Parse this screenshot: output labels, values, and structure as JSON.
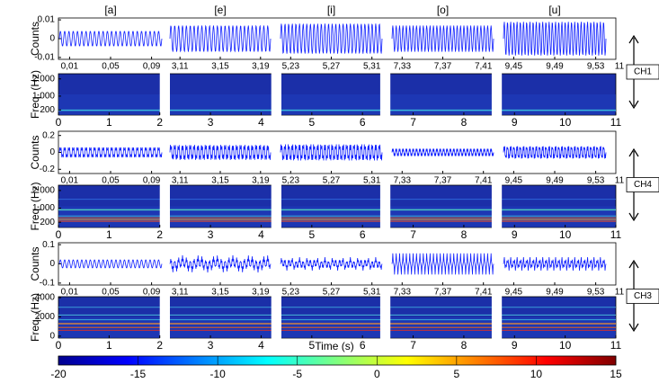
{
  "vowels": [
    "[a]",
    "[e]",
    "[i]",
    "[o]",
    "[u]"
  ],
  "waveform_x": [
    {
      "xlim": [
        0,
        0.1
      ],
      "xticks": [
        {
          "value": 0.01,
          "label": "0,01"
        },
        {
          "value": 0.05,
          "label": "0,05"
        },
        {
          "value": 0.09,
          "label": "0,09"
        }
      ]
    },
    {
      "xlim": [
        3.1,
        3.2
      ],
      "xticks": [
        {
          "value": 3.11,
          "label": "3,11"
        },
        {
          "value": 3.15,
          "label": "3,15"
        },
        {
          "value": 3.19,
          "label": "3,19"
        }
      ]
    },
    {
      "xlim": [
        5.22,
        5.32
      ],
      "xticks": [
        {
          "value": 5.23,
          "label": "5,23"
        },
        {
          "value": 5.27,
          "label": "5,27"
        },
        {
          "value": 5.31,
          "label": "5,31"
        }
      ]
    },
    {
      "xlim": [
        7.32,
        7.42
      ],
      "xticks": [
        {
          "value": 7.33,
          "label": "7,33"
        },
        {
          "value": 7.37,
          "label": "7,37"
        },
        {
          "value": 7.41,
          "label": "7,41"
        }
      ]
    },
    {
      "xlim": [
        9.44,
        9.54
      ],
      "xticks": [
        {
          "value": 9.45,
          "label": "9,45"
        },
        {
          "value": 9.49,
          "label": "9,49"
        },
        {
          "value": 9.53,
          "label": "9,53"
        }
      ]
    }
  ],
  "waveform_end_tick": 11,
  "channels": [
    {
      "name": "CH1",
      "waveform": {
        "ylabel": "Counts",
        "ylim": [
          -0.011,
          0.011
        ],
        "yticks": [
          -0.01,
          0,
          0.01
        ],
        "amplitudes": [
          0.004,
          0.007,
          0.008,
          0.007,
          0.009
        ]
      },
      "spectrogram": {
        "ylabel": "Freq. (Hz)",
        "ylim": [
          -100,
          2300
        ],
        "yticks": [
          200,
          {
            "value": 1000,
            "label": "1.000"
          },
          {
            "value": 2000,
            "label": "2.000"
          }
        ]
      }
    },
    {
      "name": "CH4",
      "waveform": {
        "ylabel": "Counts",
        "ylim": [
          -0.25,
          0.25
        ],
        "yticks": [
          -0.2,
          0,
          0.2
        ],
        "amplitudes": [
          0.08,
          0.12,
          0.13,
          0.06,
          0.1
        ]
      },
      "spectrogram": {
        "ylabel": "Freq. (Hz)",
        "ylim": [
          -100,
          2300
        ],
        "yticks": [
          200,
          {
            "value": 1000,
            "label": "1.000"
          },
          {
            "value": 2000,
            "label": "2.000"
          }
        ]
      }
    },
    {
      "name": "CH3",
      "waveform": {
        "ylabel": "Counts",
        "ylim": [
          -0.11,
          0.11
        ],
        "yticks": [
          -0.1,
          0,
          0.1
        ],
        "amplitudes": [
          0.07,
          0.045,
          0.035,
          0.055,
          0.04
        ]
      },
      "spectrogram": {
        "ylabel": "Freq. (Hz)",
        "ylim": [
          -200,
          4100
        ],
        "yticks": [
          0,
          2000,
          4000
        ]
      }
    }
  ],
  "spectrogram_x": {
    "xlim": [
      0,
      11
    ],
    "xticks": [
      0,
      1,
      2,
      3,
      4,
      5,
      6,
      7,
      8,
      9,
      10,
      11
    ],
    "gaps": [
      [
        2.0,
        2.2
      ],
      [
        4.2,
        4.4
      ],
      [
        6.35,
        6.55
      ],
      [
        8.55,
        8.75
      ]
    ],
    "xlabel": "Time (s)"
  },
  "colorbar": {
    "lim": [
      -20,
      15
    ],
    "ticks": [
      -20,
      -15,
      -10,
      -5,
      0,
      5,
      10,
      15
    ]
  }
}
